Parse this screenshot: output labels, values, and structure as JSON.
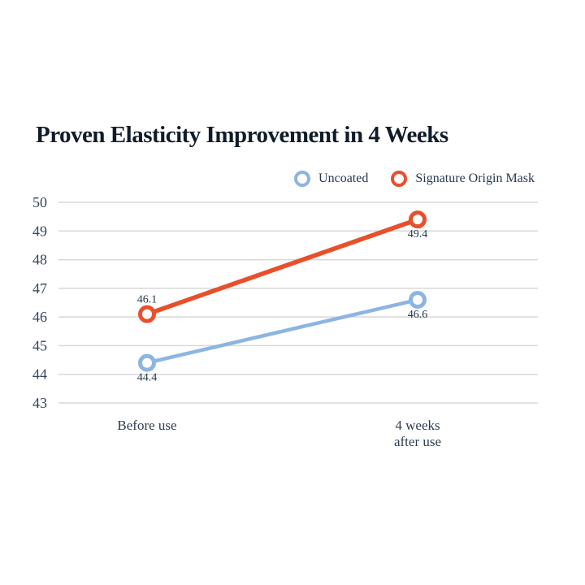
{
  "title": "Proven Elasticity Improvement in 4 Weeks",
  "colors": {
    "uncoated": "#8CB5E2",
    "signature_origin_mask": "#E8502B",
    "gridline": "#D8D8D8",
    "title_text": "#101C29",
    "axis_text": "#31465A",
    "label_text": "#24384D"
  },
  "chart_data": {
    "type": "line",
    "title": "Proven Elasticity Improvement in 4 Weeks",
    "categories": [
      "Before use",
      "4 weeks\nafter use"
    ],
    "series": [
      {
        "name": "Uncoated",
        "color": "#8CB5E2",
        "values": [
          44.4,
          46.6
        ],
        "point_labels": [
          "44.4",
          "46.6"
        ],
        "label_positions": [
          "below",
          "below"
        ]
      },
      {
        "name": "Signature Origin Mask",
        "color": "#E8502B",
        "values": [
          46.1,
          49.4
        ],
        "point_labels": [
          "46.1",
          "49.4"
        ],
        "label_positions": [
          "above",
          "below"
        ]
      }
    ],
    "xlabel": "",
    "ylabel": "",
    "ylim": [
      43,
      50
    ],
    "yticks": [
      43,
      44,
      45,
      46,
      47,
      48,
      49,
      50
    ],
    "grid": true,
    "legend_position": "top-right",
    "marker": "open-circle"
  }
}
